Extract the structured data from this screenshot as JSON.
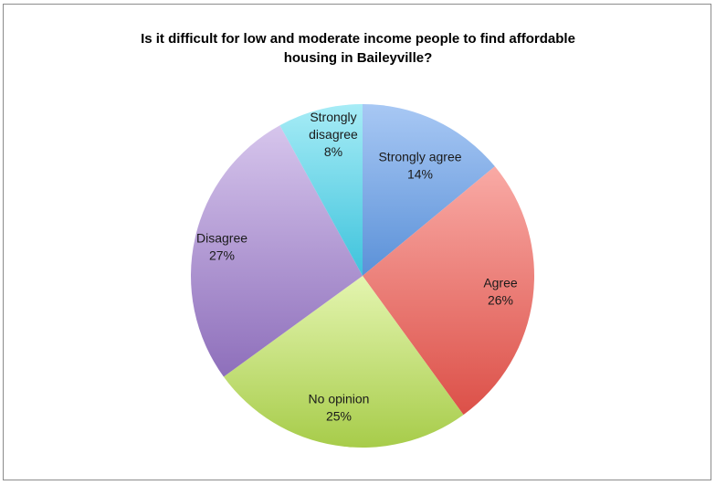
{
  "chart_data": {
    "type": "pie",
    "title_lines": [
      "Is it difficult for low and moderate income people to find affordable",
      "housing in Baileyville?"
    ],
    "legend": "none",
    "slices": [
      {
        "label": "Strongly agree",
        "value": 14,
        "display": "14%",
        "color_light": "#a8c8f4",
        "color_dark": "#5b91d8"
      },
      {
        "label": "Agree",
        "value": 26,
        "display": "26%",
        "color_light": "#f9aaa5",
        "color_dark": "#dc5048"
      },
      {
        "label": "No opinion",
        "value": 25,
        "display": "25%",
        "color_light": "#e4f5b0",
        "color_dark": "#a7cc4a"
      },
      {
        "label": "Disagree",
        "value": 27,
        "display": "27%",
        "color_light": "#d6c5ec",
        "color_dark": "#8e6fbb"
      },
      {
        "label": "Strongly disagree",
        "value": 8,
        "display": "8%",
        "color_light": "#a7ecf6",
        "color_dark": "#3ec3dc"
      }
    ]
  }
}
